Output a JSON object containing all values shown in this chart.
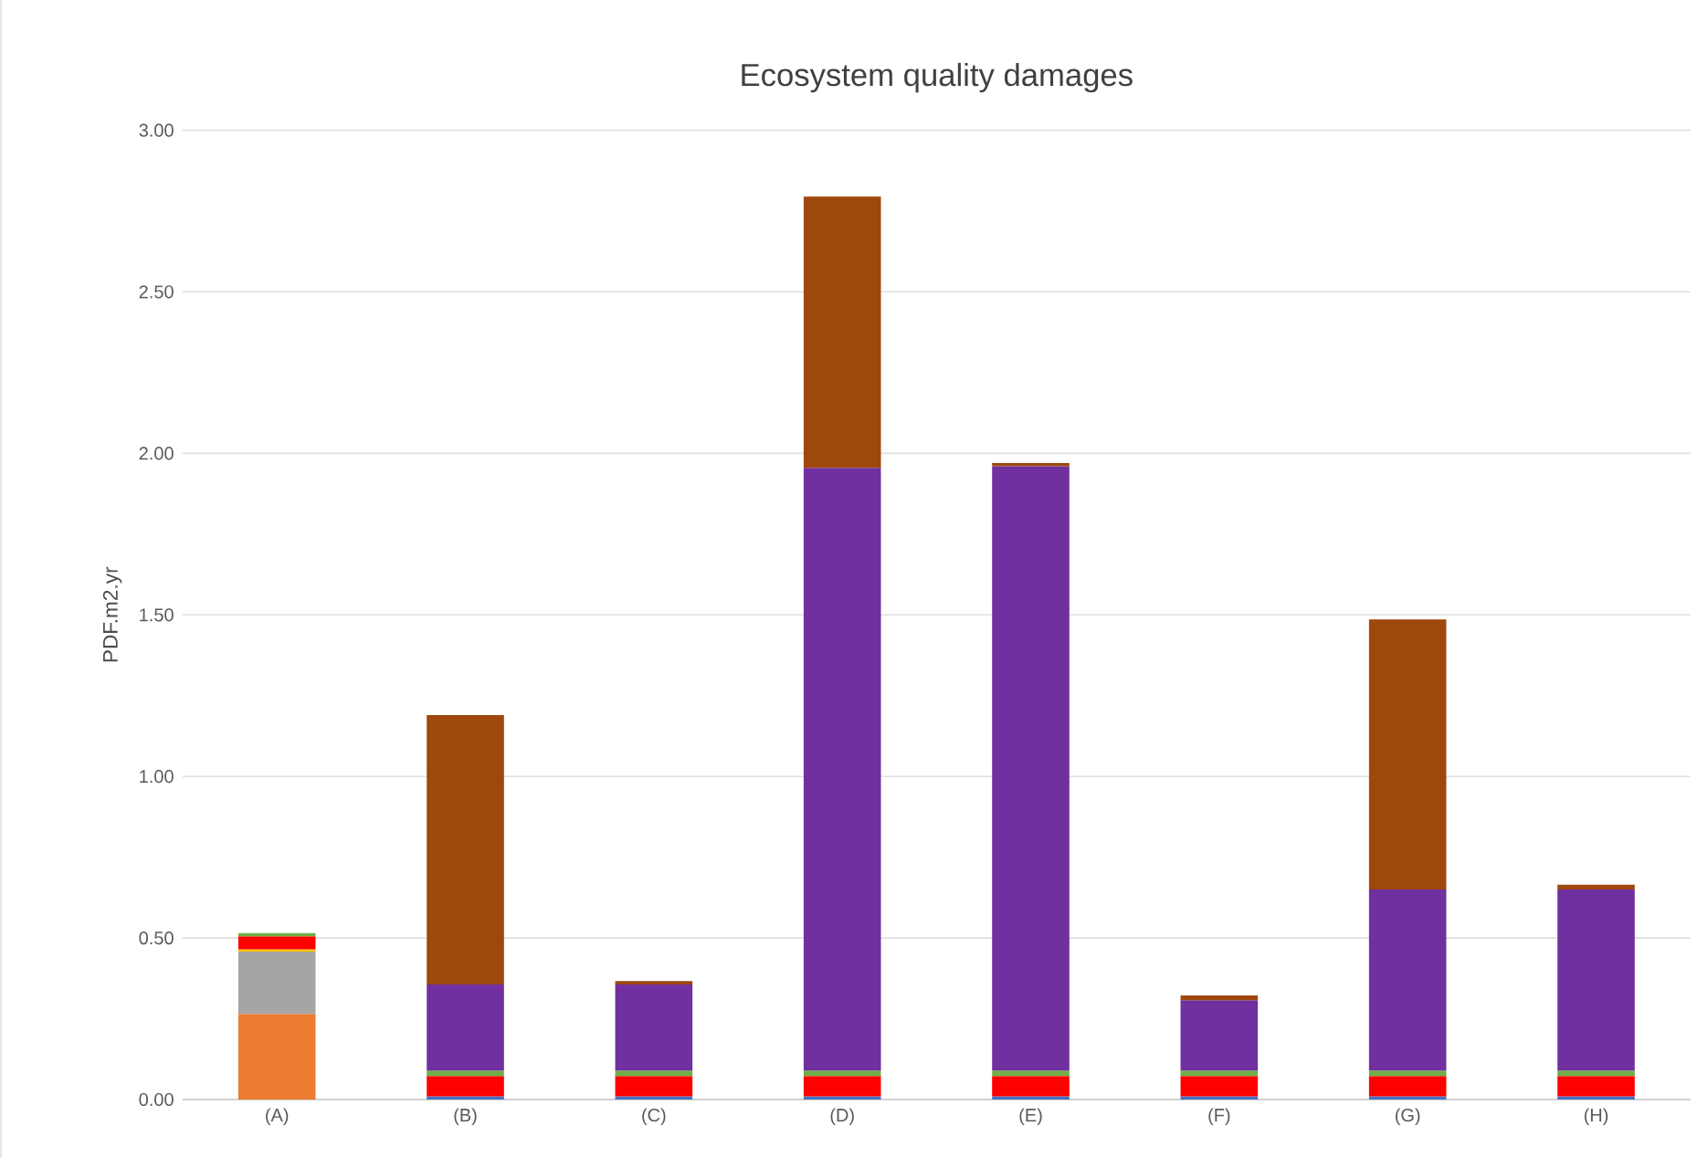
{
  "chart_data": {
    "type": "bar",
    "stacked": true,
    "title": "Ecosystem quality damages",
    "ylabel": "PDF.m2.yr",
    "categories": [
      "(A)",
      "(B)",
      "(C)",
      "(D)",
      "(E)",
      "(F)",
      "(G)",
      "(H)"
    ],
    "ylim": [
      0,
      3
    ],
    "yticks": [
      {
        "value": 0,
        "label": "0.00"
      },
      {
        "value": 0.5,
        "label": "0.50"
      },
      {
        "value": 1,
        "label": "1.00"
      },
      {
        "value": 1.5,
        "label": "1.50"
      },
      {
        "value": 2,
        "label": "2.00"
      },
      {
        "value": 2.5,
        "label": "2.50"
      },
      {
        "value": 3,
        "label": "3.00"
      }
    ],
    "grid": "y",
    "series": [
      {
        "color": "#4472c4",
        "values": [
          null,
          0.01,
          0.01,
          0.01,
          0.01,
          0.01,
          0.01,
          0.01
        ]
      },
      {
        "color": "#ed7d31",
        "values": [
          0.265,
          null,
          null,
          null,
          null,
          null,
          null,
          null
        ]
      },
      {
        "color": "#a5a5a5",
        "values": [
          0.193,
          null,
          null,
          null,
          null,
          null,
          null,
          null
        ]
      },
      {
        "color": "#ffc000",
        "values": [
          0.007,
          null,
          null,
          null,
          null,
          null,
          null,
          null
        ]
      },
      {
        "color": "#ff0000",
        "values": [
          0.04,
          0.063,
          0.063,
          0.063,
          0.063,
          0.063,
          0.063,
          0.063
        ]
      },
      {
        "color": "#70ad47",
        "values": [
          0.01,
          0.017,
          0.017,
          0.017,
          0.017,
          0.017,
          0.017,
          0.017
        ]
      },
      {
        "color": "#7030a0",
        "values": [
          null,
          0.266,
          0.266,
          1.865,
          1.87,
          0.217,
          0.56,
          0.56
        ]
      },
      {
        "color": "#9e480e",
        "values": [
          null,
          0.834,
          0.011,
          0.84,
          0.01,
          0.015,
          0.836,
          0.015
        ]
      }
    ]
  }
}
